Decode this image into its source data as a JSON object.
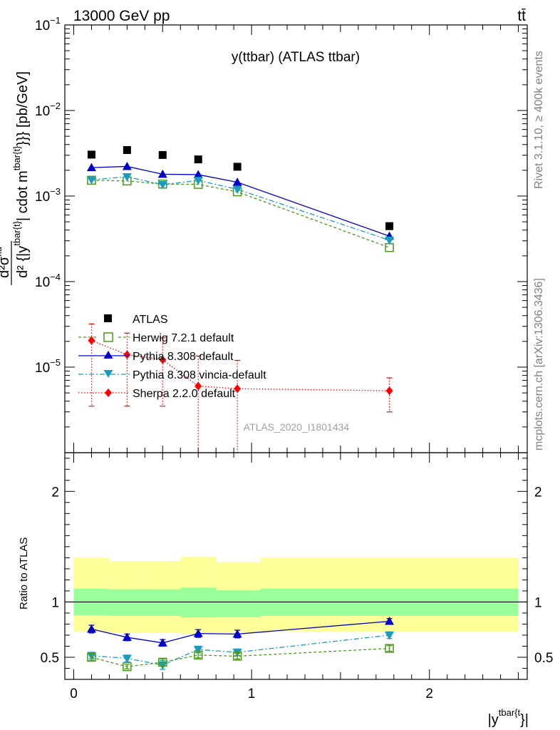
{
  "header": {
    "energy_label": "13000 GeV pp",
    "process_label": "tt̄"
  },
  "side_labels": {
    "rivet": "Rivet 3.1.10, ≥ 400k events",
    "mcplots": "mcplots.cern.ch [arXiv:1306.3436]"
  },
  "chart_data": [
    {
      "type": "scatter",
      "panel": "main",
      "title": "y(ttbar) (ATLAS ttbar)",
      "watermark": "ATLAS_2020_I1801434",
      "ylabel": "d²σ^fid / d² {|y^tbar{t}|} cdot m^{tbar{t}}}} [pb/GeV]",
      "ylabel_parts": {
        "num": "d²σ",
        "num_sup": "fid",
        "den": "d² {|y",
        "den_sup": "tbar{t}",
        "rest1": "| cdot m",
        "rest1_sup": "tbar{t}",
        "rest2": "}}} [pb/GeV]"
      },
      "yscale": "log",
      "ylim": [
        1e-06,
        0.1
      ],
      "xlim": [
        -0.05,
        2.55
      ],
      "y_ticks": [
        {
          "value": 1e-05,
          "base": "10",
          "exp": "−5"
        },
        {
          "value": 0.0001,
          "base": "10",
          "exp": "−4"
        },
        {
          "value": 0.001,
          "base": "10",
          "exp": "−3"
        },
        {
          "value": 0.01,
          "base": "10",
          "exp": "−2"
        },
        {
          "value": 0.1,
          "base": "10",
          "exp": "−1"
        }
      ],
      "x": [
        0.1,
        0.3,
        0.5,
        0.7,
        0.92,
        1.775
      ],
      "bin_edges": [
        0.0,
        0.2,
        0.4,
        0.6,
        0.8,
        1.05,
        2.5
      ],
      "series": [
        {
          "name": "ATLAS",
          "color": "#000000",
          "marker": "square-filled",
          "line": "none",
          "values": [
            0.00305,
            0.00345,
            0.00302,
            0.00268,
            0.0022,
            0.000445
          ]
        },
        {
          "name": "Herwig 7.2.1 default",
          "color": "#4a9a1a",
          "marker": "square-open",
          "line": "dashed",
          "values": [
            0.00153,
            0.0015,
            0.00138,
            0.00137,
            0.00112,
            0.00025
          ]
        },
        {
          "name": "Pythia 8.308 default",
          "color": "#0000cc",
          "marker": "triangle-up",
          "line": "solid",
          "values": [
            0.00215,
            0.00222,
            0.0018,
            0.00178,
            0.00145,
            0.00034
          ]
        },
        {
          "name": "Pythia 8.308 vincia-default",
          "color": "#1a9cc0",
          "marker": "triangle-down",
          "line": "dashdot",
          "values": [
            0.00155,
            0.00168,
            0.00136,
            0.00152,
            0.0012,
            0.000305
          ]
        },
        {
          "name": "Sherpa 2.2.0 default",
          "color": "#ff0000",
          "marker": "diamond",
          "line": "dotted",
          "values": [
            2.05e-05,
            1.4e-05,
            1.22e-05,
            6e-06,
            5.6e-06,
            5.3e-06
          ],
          "err_lo": [
            3.5e-06,
            3.5e-06,
            3.5e-06,
            0.0,
            0.0,
            3e-06
          ],
          "err_hi": [
            3.2e-05,
            2.5e-05,
            2.2e-05,
            1.35e-05,
            1.2e-05,
            7.5e-06
          ]
        }
      ]
    },
    {
      "type": "scatter",
      "panel": "ratio",
      "ylabel": "Ratio to ATLAS",
      "xlabel": "|y^{tbar{t}}|",
      "xlabel_parts": {
        "main": "|y",
        "sup": "tbar{t",
        "end": "}|"
      },
      "ylim": [
        0.3,
        2.35
      ],
      "xlim": [
        -0.05,
        2.55
      ],
      "x_ticks": [
        {
          "value": 0,
          "label": "0"
        },
        {
          "value": 1,
          "label": "1"
        },
        {
          "value": 2,
          "label": "2"
        }
      ],
      "y_ticks": [
        {
          "value": 0.5,
          "label": "0.5"
        },
        {
          "value": 1,
          "label": "1"
        },
        {
          "value": 2,
          "label": "2"
        }
      ],
      "x": [
        0.1,
        0.3,
        0.5,
        0.7,
        0.92,
        1.775
      ],
      "bin_edges": [
        0.0,
        0.2,
        0.4,
        0.6,
        0.8,
        1.05,
        2.5
      ],
      "band_inner": {
        "lo": [
          0.88,
          0.875,
          0.875,
          0.86,
          0.865,
          0.875
        ],
        "hi": [
          1.12,
          1.115,
          1.115,
          1.13,
          1.105,
          1.12
        ],
        "color": "#99ff99"
      },
      "band_outer": {
        "lo": [
          0.73,
          0.72,
          0.72,
          0.71,
          0.72,
          0.73
        ],
        "hi": [
          1.4,
          1.37,
          1.37,
          1.41,
          1.36,
          1.4
        ],
        "color": "#ffff99"
      },
      "series": [
        {
          "name": "Pythia 8.308 default",
          "color": "#0000cc",
          "marker": "triangle-up",
          "line": "solid",
          "values": [
            0.755,
            0.68,
            0.63,
            0.715,
            0.71,
            0.825
          ],
          "err": [
            0.035,
            0.03,
            0.03,
            0.035,
            0.035,
            0.025
          ]
        },
        {
          "name": "Pythia 8.308 vincia-default",
          "color": "#1a9cc0",
          "marker": "triangle-down",
          "line": "dashdot",
          "values": [
            0.515,
            0.49,
            0.43,
            0.57,
            0.545,
            0.7
          ],
          "err": [
            0.03,
            0.03,
            0.04,
            0.03,
            0.03,
            0.03
          ]
        },
        {
          "name": "Herwig 7.2.1 default",
          "color": "#4a9a1a",
          "marker": "square-open",
          "line": "dashed",
          "values": [
            0.5,
            0.415,
            0.455,
            0.52,
            0.51,
            0.58
          ],
          "err": [
            0.03,
            0.02,
            0.03,
            0.025,
            0.025,
            0.025
          ]
        }
      ]
    }
  ]
}
